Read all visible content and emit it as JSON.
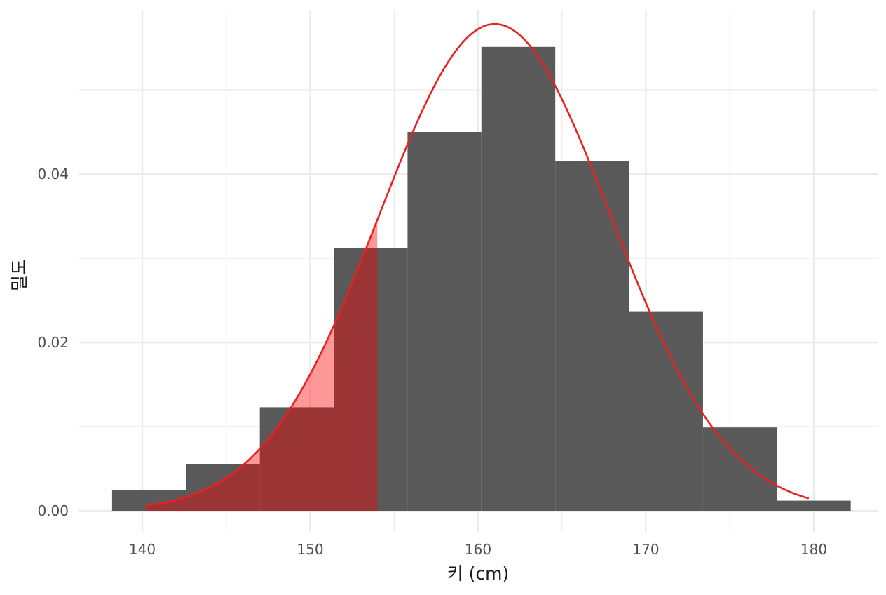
{
  "chart_data": {
    "type": "histogram",
    "title": "",
    "xlabel": "키 (cm)",
    "ylabel": "밀도",
    "xlim": [
      136.2,
      183.8
    ],
    "ylim": [
      -0.0025,
      0.0595
    ],
    "x_ticks": [
      140,
      150,
      160,
      170,
      180
    ],
    "x_tick_labels": [
      "140",
      "150",
      "160",
      "170",
      "180"
    ],
    "x_minor_ticks": [
      145,
      155,
      165,
      175
    ],
    "y_ticks": [
      0,
      0.02,
      0.04
    ],
    "y_tick_labels": [
      "0.00",
      "0.02",
      "0.04"
    ],
    "y_minor_ticks": [
      0.01,
      0.03,
      0.05
    ],
    "grid": true,
    "bins": [
      {
        "x0": 138.2,
        "x1": 142.6,
        "density": 0.0025
      },
      {
        "x0": 142.6,
        "x1": 147.0,
        "density": 0.0055
      },
      {
        "x0": 147.0,
        "x1": 151.4,
        "density": 0.0123
      },
      {
        "x0": 151.4,
        "x1": 155.8,
        "density": 0.0312
      },
      {
        "x0": 155.8,
        "x1": 160.2,
        "density": 0.045
      },
      {
        "x0": 160.2,
        "x1": 164.6,
        "density": 0.0551
      },
      {
        "x0": 164.6,
        "x1": 169.0,
        "density": 0.0415
      },
      {
        "x0": 169.0,
        "x1": 173.4,
        "density": 0.0237
      },
      {
        "x0": 173.4,
        "x1": 177.8,
        "density": 0.0099
      },
      {
        "x0": 177.8,
        "x1": 182.2,
        "density": 0.0012
      }
    ],
    "density_curve": {
      "mean": 161.0,
      "sd": 6.9,
      "x_range": [
        140.2,
        179.7
      ]
    },
    "shaded_region": {
      "x_from": 140.2,
      "x_to": 154.0
    },
    "colors": {
      "bars": "#595959",
      "curve": "#e8221f",
      "shade": "#ff0000",
      "shade_opacity": 0.4,
      "grid": "#ebebeb"
    }
  }
}
